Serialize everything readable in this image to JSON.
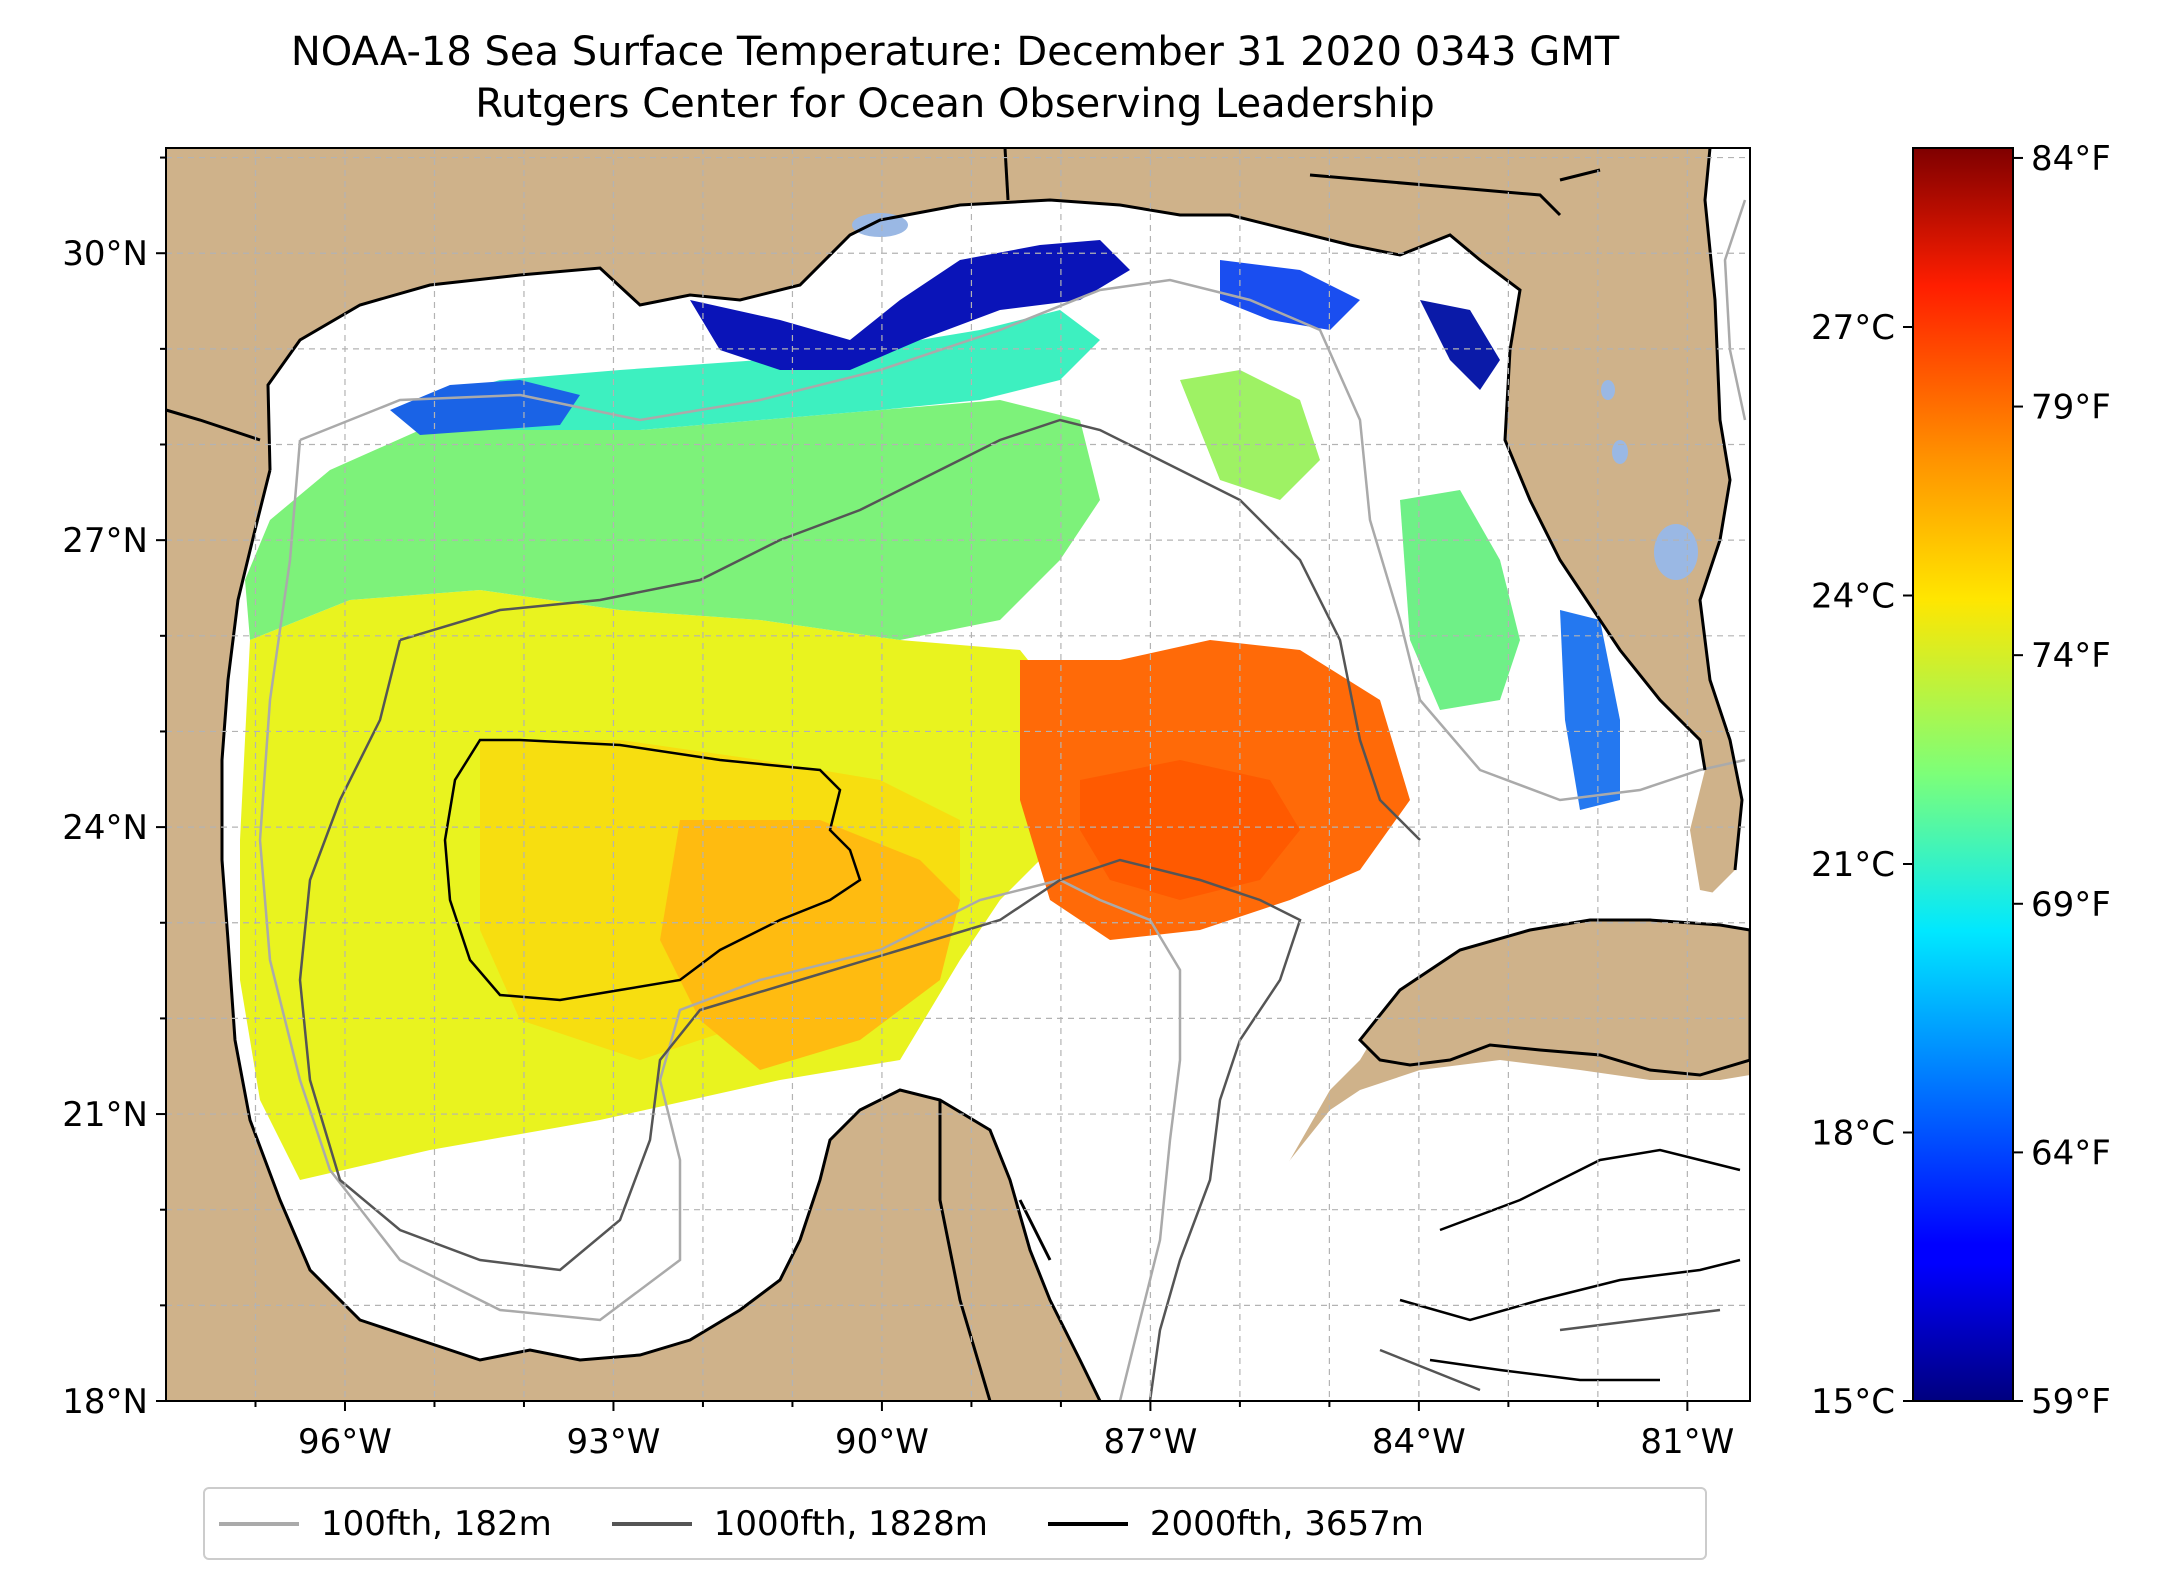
{
  "title": {
    "line1": "NOAA-18 Sea Surface Temperature: December 31 2020 0343 GMT",
    "line2": "Rutgers Center for Ocean Observing Leadership"
  },
  "map": {
    "region": "Gulf of Mexico",
    "lon_range": [
      -98,
      -80.3
    ],
    "lat_range": [
      18,
      31.1
    ],
    "lat_ticks": [
      {
        "value": 18,
        "label": "18°N"
      },
      {
        "value": 21,
        "label": "21°N"
      },
      {
        "value": 24,
        "label": "24°N"
      },
      {
        "value": 27,
        "label": "27°N"
      },
      {
        "value": 30,
        "label": "30°N"
      }
    ],
    "lon_ticks": [
      {
        "value": -96,
        "label": "96°W"
      },
      {
        "value": -93,
        "label": "93°W"
      },
      {
        "value": -90,
        "label": "90°W"
      },
      {
        "value": -87,
        "label": "87°W"
      },
      {
        "value": -84,
        "label": "84°W"
      },
      {
        "value": -81,
        "label": "81°W"
      }
    ],
    "gridlines": true,
    "colors": {
      "land": "#cfb28a",
      "lakes": "#9ab8e4",
      "no_data": "#ffffff",
      "gridline": "#b3b3b3"
    }
  },
  "colorbar": {
    "colormap": "jet",
    "range_c": [
      15,
      29
    ],
    "celsius_ticks": [
      "15°C",
      "18°C",
      "21°C",
      "24°C",
      "27°C"
    ],
    "celsius_values": [
      15,
      18,
      21,
      24,
      27
    ],
    "fahrenheit_ticks": [
      "59°F",
      "64°F",
      "69°F",
      "74°F",
      "79°F",
      "84°F"
    ],
    "fahrenheit_values": [
      59,
      64,
      69,
      74,
      79,
      84
    ]
  },
  "legend": {
    "items": [
      {
        "label": "100fth, 182m",
        "color": "#aaaaaa"
      },
      {
        "label": "1000fth, 1828m",
        "color": "#555555"
      },
      {
        "label": "2000fth, 3657m",
        "color": "#000000"
      }
    ]
  }
}
